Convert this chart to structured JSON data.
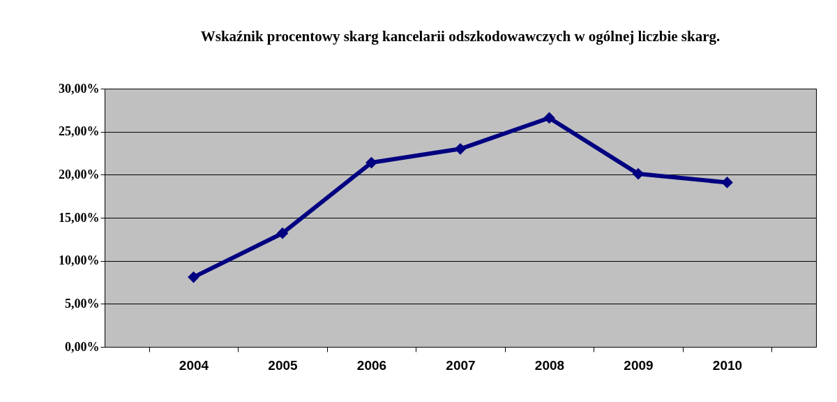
{
  "chart_data": {
    "type": "line",
    "title": "Wskaźnik procentowy skarg kancelarii odszkodowawczych w ogólnej liczbie skarg.",
    "categories": [
      "2004",
      "2005",
      "2006",
      "2007",
      "2008",
      "2009",
      "2010"
    ],
    "series": [
      {
        "color": "#000080",
        "values": [
          8.1,
          13.2,
          21.4,
          23.0,
          26.6,
          20.1,
          19.1
        ]
      }
    ],
    "ylim": [
      0,
      30
    ],
    "yticks": [
      {
        "value": 0,
        "label": "0,00%"
      },
      {
        "value": 5,
        "label": "5,00%"
      },
      {
        "value": 10,
        "label": "10,00%"
      },
      {
        "value": 15,
        "label": "15,00%"
      },
      {
        "value": 20,
        "label": "20,00%"
      },
      {
        "value": 25,
        "label": "25,00%"
      },
      {
        "value": 30,
        "label": "30,00%"
      }
    ],
    "grid": "y",
    "marker": "diamond",
    "line_style": "solid",
    "legend": false
  }
}
